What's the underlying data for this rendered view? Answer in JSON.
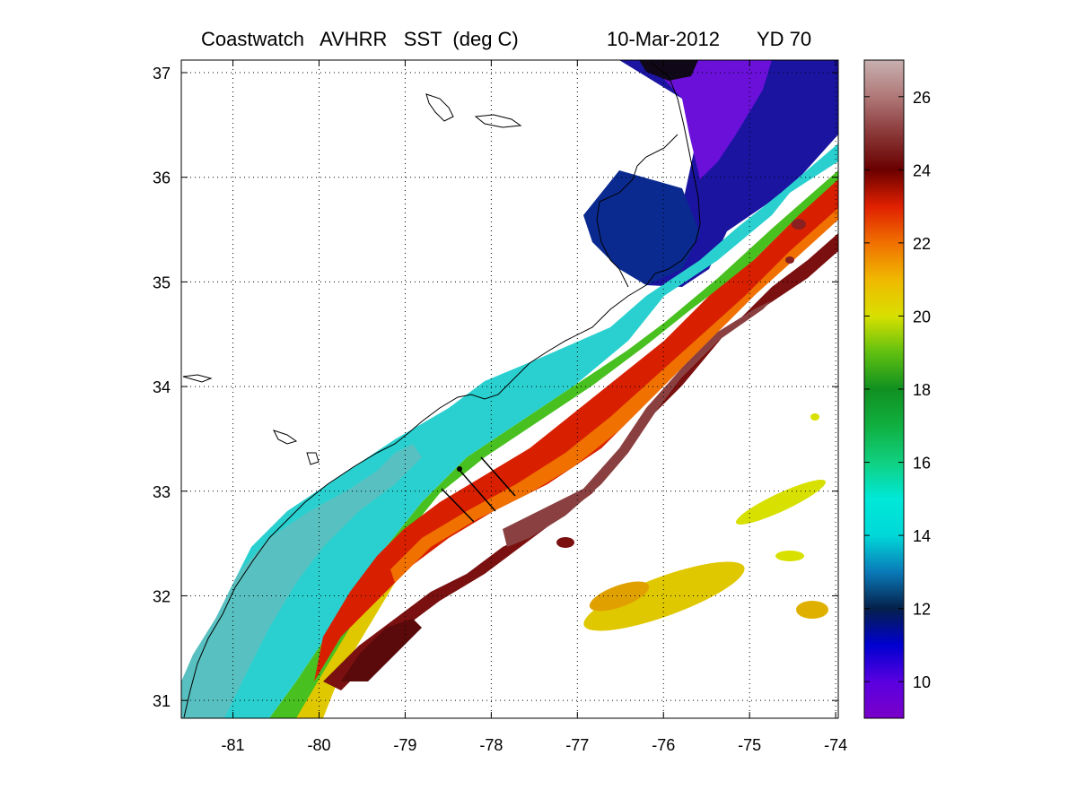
{
  "title": {
    "product": "Coastwatch   AVHRR   SST  (deg C)",
    "date": "10-Mar-2012",
    "yearday": "YD 70"
  },
  "map": {
    "lon_range": [
      -81.6,
      -73.97
    ],
    "lat_range": [
      30.83,
      37.12
    ],
    "xticks": [
      {
        "value": -81,
        "label": "-81"
      },
      {
        "value": -80,
        "label": "-80"
      },
      {
        "value": -79,
        "label": "-79"
      },
      {
        "value": -78,
        "label": "-78"
      },
      {
        "value": -77,
        "label": "-77"
      },
      {
        "value": -76,
        "label": "-76"
      },
      {
        "value": -75,
        "label": "-75"
      },
      {
        "value": -74,
        "label": "-74"
      }
    ],
    "yticks": [
      {
        "value": 31,
        "label": "31"
      },
      {
        "value": 32,
        "label": "32"
      },
      {
        "value": 33,
        "label": "33"
      },
      {
        "value": 34,
        "label": "34"
      },
      {
        "value": 35,
        "label": "35"
      },
      {
        "value": 36,
        "label": "36"
      },
      {
        "value": 37,
        "label": "37"
      }
    ],
    "grid": "dotted"
  },
  "colorbar": {
    "range": [
      9,
      27
    ],
    "ticks": [
      {
        "value": 10,
        "label": "10"
      },
      {
        "value": 12,
        "label": "12"
      },
      {
        "value": 14,
        "label": "14"
      },
      {
        "value": 16,
        "label": "16"
      },
      {
        "value": 18,
        "label": "18"
      },
      {
        "value": 20,
        "label": "20"
      },
      {
        "value": 22,
        "label": "22"
      },
      {
        "value": 24,
        "label": "24"
      },
      {
        "value": 26,
        "label": "26"
      }
    ],
    "stops": [
      {
        "value": 9,
        "color": "#7a00c8"
      },
      {
        "value": 10,
        "color": "#5a00e0"
      },
      {
        "value": 11,
        "color": "#0000d0"
      },
      {
        "value": 12,
        "color": "#05204a"
      },
      {
        "value": 13,
        "color": "#0a7ab8"
      },
      {
        "value": 14,
        "color": "#00d8d8"
      },
      {
        "value": 15,
        "color": "#00e8d8"
      },
      {
        "value": 16,
        "color": "#10d080"
      },
      {
        "value": 17,
        "color": "#10b040"
      },
      {
        "value": 18,
        "color": "#109020"
      },
      {
        "value": 19,
        "color": "#60c010"
      },
      {
        "value": 20,
        "color": "#d8e000"
      },
      {
        "value": 21,
        "color": "#f0b800"
      },
      {
        "value": 22,
        "color": "#f07000"
      },
      {
        "value": 23,
        "color": "#e02000"
      },
      {
        "value": 24,
        "color": "#6a0000"
      },
      {
        "value": 25,
        "color": "#8a3838"
      },
      {
        "value": 26,
        "color": "#b07878"
      },
      {
        "value": 27,
        "color": "#c8b0b0"
      }
    ]
  }
}
